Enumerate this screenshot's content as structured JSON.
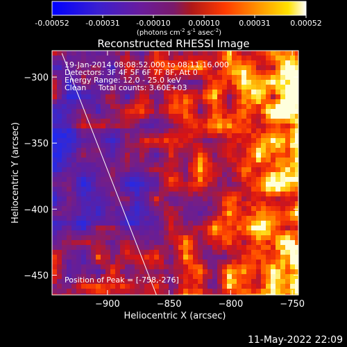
{
  "colorbar": {
    "ticks": [
      "-0.00052",
      "-0.00031",
      "-0.00010",
      "0.00010",
      "0.00031",
      "0.00052"
    ],
    "units_main": "(photons cm",
    "units_sup1": "-2",
    "units_mid1": " s",
    "units_sup2": "-1",
    "units_mid2": " asec",
    "units_sup3": "-2",
    "units_end": ")"
  },
  "annotation": {
    "line1": "19-Jan-2014 08:08:52.000 to 08:11:16.000",
    "line2": "Detectors: 3F 4F 5F 6F 7F 8F, Att 0",
    "line3": "Energy Range: 12.0 - 25.0 keV",
    "line4": "Clean     Total counts: 3.60E+03",
    "peak": "Position of Peak = [-758,-276]"
  },
  "footer": {
    "timestamp": "11-May-2022 22:09"
  },
  "chart_data": {
    "type": "heatmap",
    "title": "Reconstructed RHESSI Image",
    "xlabel": "Heliocentric X (arcsec)",
    "ylabel": "Heliocentric Y (arcsec)",
    "xlim": [
      -945,
      -745
    ],
    "ylim": [
      -465,
      -280
    ],
    "xticks": [
      -900,
      -850,
      -800,
      -750
    ],
    "yticks": [
      -300,
      -350,
      -400,
      -450
    ],
    "xtick_labels": [
      "−900",
      "−850",
      "−800",
      "−750"
    ],
    "ytick_labels": [
      "−300",
      "−350",
      "−400",
      "−450"
    ],
    "colormap": "blue-purple-red-yellow-white",
    "colorbar_range": [
      -0.00052,
      0.00052
    ],
    "peak": [
      -758,
      -276
    ],
    "limb_line": [
      [
        -937,
        -282
      ],
      [
        -859,
        -468
      ]
    ],
    "colors": {
      "background": "#000000",
      "cmap_stops": [
        "#0000ff",
        "#3020c0",
        "#5a1e9a",
        "#7a1f8a",
        "#a02050",
        "#d01818",
        "#ff4000",
        "#ff9000",
        "#ffd000",
        "#ffffff"
      ]
    }
  }
}
